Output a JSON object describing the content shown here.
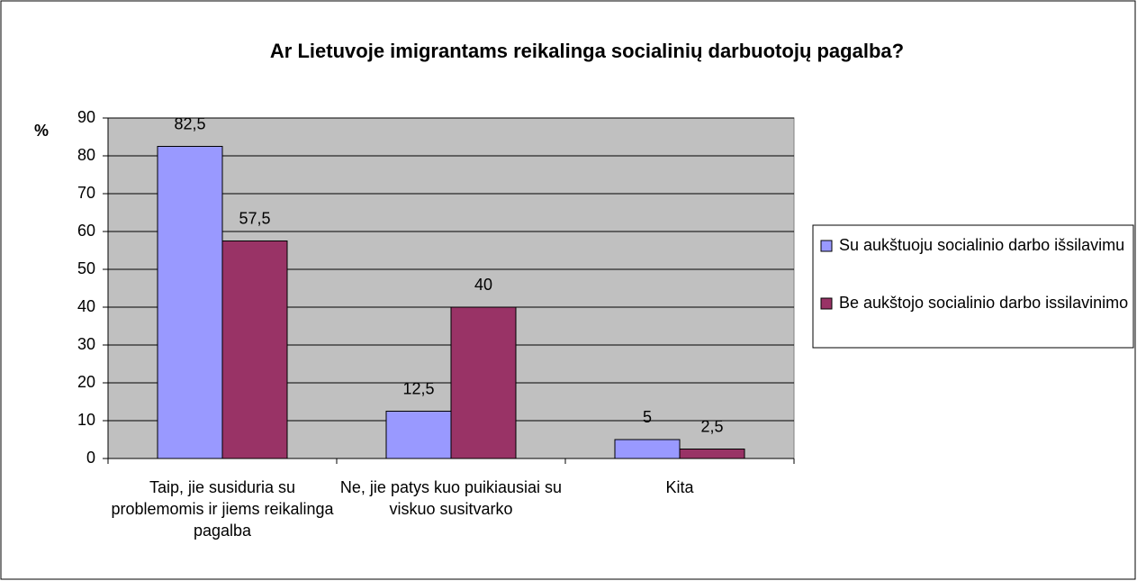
{
  "chart_data": {
    "type": "bar",
    "title": "Ar Lietuvoje imigrantams reikalinga socialinių darbuotojų pagalba?",
    "y_label": "%",
    "categories": [
      "Taip, jie susiduria su problemomis ir jiems reikalinga pagalba",
      "Ne, jie patys kuo puikiausiai su viskuo susitvarko",
      "Kita"
    ],
    "series": [
      {
        "name": "Su aukštuoju socialinio darbo išsilavimu",
        "color": "#9999ff",
        "values": [
          82.5,
          12.5,
          5
        ],
        "value_labels": [
          "82,5",
          "12,5",
          "5"
        ]
      },
      {
        "name": "Be aukštojo socialinio darbo issilavinimo",
        "color": "#993366",
        "values": [
          57.5,
          40,
          2.5
        ],
        "value_labels": [
          "57,5",
          "40",
          "2,5"
        ]
      }
    ],
    "ylim": [
      0,
      90
    ],
    "yticks": [
      0,
      10,
      20,
      30,
      40,
      50,
      60,
      70,
      80,
      90
    ],
    "grid": true,
    "plot_background": "#c0c0c0",
    "legend": "right"
  }
}
